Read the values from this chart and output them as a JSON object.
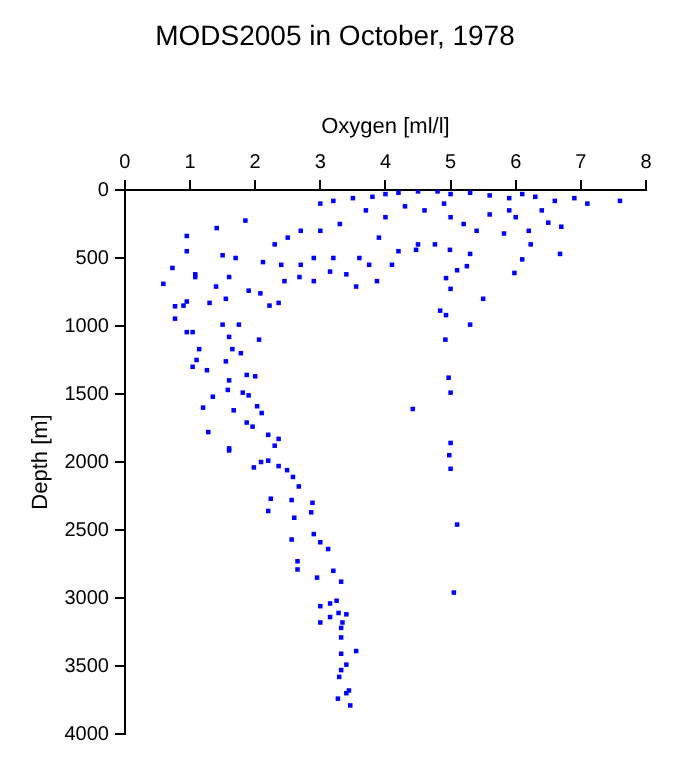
{
  "chart_data": {
    "type": "scatter",
    "title": "MODS2005 in October, 1978",
    "xlabel": "Oxygen [ml/l]",
    "ylabel": "Depth [m]",
    "xlim": [
      0,
      8
    ],
    "xticks": [
      0,
      1,
      2,
      3,
      4,
      5,
      6,
      7,
      8
    ],
    "ylim": [
      4000,
      0
    ],
    "yticks": [
      0,
      500,
      1000,
      1500,
      2000,
      2500,
      3000,
      3500,
      4000
    ],
    "grid": false,
    "legend": false,
    "marker": "square",
    "series": [
      {
        "color": "#0000ff",
        "x": [
          3.0,
          3.2,
          3.5,
          3.8,
          4.0,
          4.2,
          4.5,
          4.8,
          5.0,
          5.3,
          5.6,
          5.9,
          6.1,
          6.3,
          6.6,
          6.9,
          7.1,
          7.6,
          6.4,
          6.0,
          5.6,
          5.2,
          5.4,
          6.2,
          6.7,
          5.0,
          4.6,
          4.3,
          4.0,
          3.7,
          3.3,
          3.0,
          2.7,
          2.5,
          2.3,
          4.9,
          5.9,
          3.9,
          4.5,
          4.2,
          4.1,
          3.6,
          3.2,
          2.9,
          2.7,
          2.4,
          0.95,
          1.85,
          1.41,
          0.95,
          0.73,
          0.59,
          0.77,
          0.77,
          0.95,
          1.08,
          0.95,
          1.04,
          1.14,
          1.1,
          1.04,
          1.26,
          1.35,
          1.2,
          1.28,
          1.6,
          1.55,
          1.5,
          1.6,
          1.65,
          1.55,
          1.78,
          1.87,
          2.0,
          1.9,
          2.03,
          2.1,
          1.87,
          1.96,
          2.2,
          2.36,
          2.3,
          1.4,
          1.6,
          1.9,
          2.08,
          2.22,
          2.36,
          2.45,
          2.68,
          2.9,
          3.15,
          3.4,
          3.55,
          3.75,
          3.87,
          2.12,
          1.7,
          1.5,
          1.08,
          0.9,
          1.3,
          1.75,
          2.06,
          1.6,
          1.58,
          1.67,
          1.81,
          4.93,
          5.0,
          5.5,
          4.84,
          4.93,
          5.3,
          4.92,
          4.97,
          5.0,
          4.42,
          5.0,
          5.98,
          6.68,
          6.1,
          5.1,
          5.25,
          5.3,
          4.76,
          4.99,
          4.47,
          5.82,
          6.23,
          6.5,
          5.1,
          5.05,
          5.0,
          4.98,
          1.6,
          2.09,
          1.98,
          2.2,
          2.36,
          2.49,
          2.58,
          2.67,
          2.56,
          2.88,
          2.24,
          2.2,
          2.6,
          2.86,
          2.56,
          2.9,
          3.0,
          3.12,
          2.65,
          2.65,
          2.95,
          3.2,
          3.32,
          3.0,
          3.25,
          3.15,
          3.15,
          3.0,
          3.28,
          3.4,
          3.34,
          3.32,
          3.32,
          3.55,
          3.32,
          3.4,
          3.32,
          3.29,
          3.44,
          3.4,
          3.27,
          3.46
        ],
        "values": [
          100,
          80,
          60,
          50,
          30,
          20,
          10,
          10,
          30,
          20,
          40,
          60,
          30,
          50,
          80,
          60,
          100,
          80,
          150,
          200,
          180,
          250,
          300,
          300,
          270,
          200,
          150,
          120,
          200,
          150,
          250,
          300,
          300,
          350,
          400,
          100,
          150,
          350,
          400,
          450,
          550,
          500,
          500,
          500,
          550,
          550,
          338,
          225,
          280,
          450,
          573,
          690,
          855,
          946,
          820,
          620,
          1045,
          1045,
          1170,
          1250,
          1300,
          1325,
          1520,
          1600,
          1780,
          1900,
          800,
          990,
          1080,
          1170,
          1260,
          1200,
          1360,
          1370,
          1510,
          1590,
          1640,
          1710,
          1740,
          1800,
          1830,
          1880,
          710,
          640,
          740,
          760,
          850,
          830,
          670,
          640,
          670,
          600,
          620,
          710,
          550,
          670,
          530,
          500,
          480,
          640,
          850,
          830,
          990,
          1100,
          1400,
          1470,
          1620,
          1490,
          648,
          727,
          800,
          887,
          920,
          990,
          1100,
          1380,
          1490,
          1610,
          1860,
          610,
          470,
          510,
          590,
          560,
          470,
          400,
          440,
          440,
          320,
          400,
          240,
          2460,
          2960,
          2050,
          1950,
          1915,
          2000,
          2040,
          1990,
          2030,
          2060,
          2110,
          2180,
          2280,
          2300,
          2270,
          2360,
          2410,
          2370,
          2570,
          2530,
          2590,
          2640,
          2730,
          2790,
          2850,
          2800,
          2880,
          3060,
          3020,
          3040,
          3140,
          3180,
          3110,
          3120,
          3180,
          3220,
          3290,
          3390,
          3410,
          3490,
          3530,
          3580,
          3680,
          3700,
          3740,
          3790
        ]
      }
    ]
  }
}
